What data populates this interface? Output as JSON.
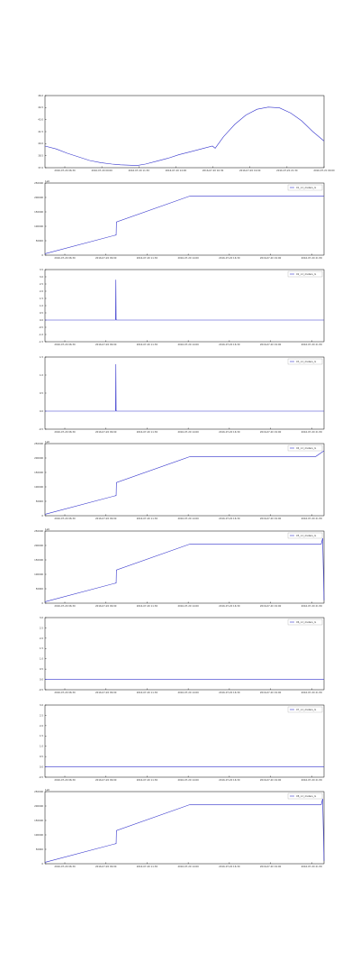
{
  "chart_data": [
    {
      "type": "line",
      "y_range": [
        37.0,
        47.0
      ],
      "y_ticks": [
        "37.0",
        "38.5",
        "40.0",
        "41.5",
        "43.0",
        "44.5",
        "46.0"
      ],
      "x_ticks": [
        "2016-07-20 06:30",
        "2016-07-20 09:00",
        "2016-07-20 11:30",
        "2016-07-20 14:00",
        "2016-07-20 16:30",
        "2016-07-20 19:00",
        "2016-07-20 21:30",
        "2016-07-21 00:00"
      ],
      "legend": null,
      "offset": null,
      "series": [
        {
          "color": "#3333cc",
          "x": [
            0,
            4,
            8,
            12,
            16,
            20,
            24,
            27,
            30,
            33,
            36,
            40,
            44,
            48,
            52,
            56,
            60,
            61,
            64,
            68,
            72,
            76,
            80,
            84,
            88,
            92,
            96,
            100
          ],
          "y": [
            40.0,
            39.6,
            39.0,
            38.5,
            38.0,
            37.7,
            37.5,
            37.4,
            37.35,
            37.3,
            37.5,
            37.9,
            38.3,
            38.8,
            39.2,
            39.6,
            40.0,
            39.7,
            41.3,
            43.0,
            44.3,
            45.1,
            45.4,
            45.3,
            44.6,
            43.5,
            42.0,
            40.7
          ]
        }
      ]
    },
    {
      "type": "line",
      "y_range": [
        0,
        250000
      ],
      "y_ticks": [
        "0",
        "50000",
        "100000",
        "150000",
        "200000",
        "250000"
      ],
      "x_ticks": [
        "2016-07-20 06:30",
        "2016-07-20 09:00",
        "2016-07-20 11:30",
        "2016-07-20 14:00",
        "2016-07-20 16:30",
        "2016-07-20 19:00",
        "2016-07-20 21:30"
      ],
      "legend": "X1_ccl_meters_IL",
      "offset": "1e6",
      "series": [
        {
          "color": "#3333cc",
          "x": [
            0,
            25.5,
            25.6,
            52,
            100
          ],
          "y": [
            5000,
            70000,
            115000,
            205000,
            205000
          ]
        }
      ]
    },
    {
      "type": "line",
      "y_range": [
        -1.5,
        3.5
      ],
      "y_ticks": [
        "-1.5",
        "-1.0",
        "-0.5",
        "0.0",
        "0.5",
        "1.0",
        "1.5",
        "2.0",
        "2.5",
        "3.0",
        "3.5"
      ],
      "x_ticks": [
        "2016-07-20 06:30",
        "2016-07-20 09:00",
        "2016-07-20 11:30",
        "2016-07-20 14:00",
        "2016-07-20 16:30",
        "2016-07-20 19:00",
        "2016-07-20 21:30"
      ],
      "legend": "X2_ccl_meters_IL",
      "offset": null,
      "series": [
        {
          "color": "#3333cc",
          "x": [
            0,
            25.3,
            25.4,
            25.5,
            25.6,
            100
          ],
          "y": [
            0,
            0,
            2.8,
            0.05,
            0,
            0
          ]
        }
      ]
    },
    {
      "type": "line",
      "y_range": [
        -0.5,
        1.5
      ],
      "y_ticks": [
        "-0.5",
        "0.0",
        "0.5",
        "1.0",
        "1.5"
      ],
      "x_ticks": [
        "2016-07-20 06:30",
        "2016-07-20 09:00",
        "2016-07-20 11:30",
        "2016-07-20 14:00",
        "2016-07-20 16:30",
        "2016-07-20 19:00",
        "2016-07-20 21:30"
      ],
      "legend": "X3_ccl_meters_IL",
      "offset": null,
      "series": [
        {
          "color": "#3333cc",
          "x": [
            0,
            25.3,
            25.4,
            25.5,
            25.6,
            100
          ],
          "y": [
            0,
            0,
            1.3,
            0.02,
            0,
            0
          ]
        }
      ]
    },
    {
      "type": "line",
      "y_range": [
        0,
        250000
      ],
      "y_ticks": [
        "0",
        "50000",
        "100000",
        "150000",
        "200000",
        "250000"
      ],
      "x_ticks": [
        "2016-07-20 06:30",
        "2016-07-20 09:00",
        "2016-07-20 11:30",
        "2016-07-20 14:00",
        "2016-07-20 16:30",
        "2016-07-20 19:00",
        "2016-07-20 21:30"
      ],
      "legend": "X4_ccl_meters_IL",
      "offset": "1e6",
      "series": [
        {
          "color": "#3333cc",
          "x": [
            0,
            25.5,
            25.6,
            52,
            97,
            100
          ],
          "y": [
            5000,
            70000,
            115000,
            205000,
            205000,
            225000
          ]
        }
      ]
    },
    {
      "type": "line",
      "y_range": [
        0,
        250000
      ],
      "y_ticks": [
        "0",
        "50000",
        "100000",
        "150000",
        "200000",
        "250000"
      ],
      "x_ticks": [
        "2016-07-20 06:30",
        "2016-07-20 09:00",
        "2016-07-20 11:30",
        "2016-07-20 14:00",
        "2016-07-20 16:30",
        "2016-07-20 19:00",
        "2016-07-20 21:30"
      ],
      "legend": "X5_ccl_meters_IL",
      "offset": "1e6",
      "series": [
        {
          "color": "#3333cc",
          "x": [
            0,
            25.5,
            25.6,
            52,
            99,
            99.5,
            100
          ],
          "y": [
            5000,
            70000,
            115000,
            205000,
            205000,
            225000,
            10000
          ]
        }
      ]
    },
    {
      "type": "line",
      "y_range": [
        -0.5,
        3.0
      ],
      "y_ticks": [
        "-0.5",
        "0.0",
        "0.5",
        "1.0",
        "1.5",
        "2.0",
        "2.5",
        "3.0"
      ],
      "x_ticks": [
        "2016-07-20 06:30",
        "2016-07-20 09:00",
        "2016-07-20 11:30",
        "2016-07-20 14:00",
        "2016-07-20 16:30",
        "2016-07-20 19:00",
        "2016-07-20 21:30"
      ],
      "legend": "X6_ccl_meters_IL",
      "offset": null,
      "series": [
        {
          "color": "#3333cc",
          "x": [
            0,
            100
          ],
          "y": [
            0,
            0
          ]
        }
      ]
    },
    {
      "type": "line",
      "y_range": [
        -0.5,
        3.0
      ],
      "y_ticks": [
        "-0.5",
        "0.0",
        "0.5",
        "1.0",
        "1.5",
        "2.0",
        "2.5",
        "3.0"
      ],
      "x_ticks": [
        "2016-07-20 06:30",
        "2016-07-20 09:00",
        "2016-07-20 11:30",
        "2016-07-20 14:00",
        "2016-07-20 16:30",
        "2016-07-20 19:00",
        "2016-07-20 21:30"
      ],
      "legend": "X7_ccl_meters_IL",
      "offset": null,
      "series": [
        {
          "color": "#3333cc",
          "x": [
            0,
            100
          ],
          "y": [
            0,
            0
          ]
        }
      ]
    },
    {
      "type": "line",
      "y_range": [
        0,
        250000
      ],
      "y_ticks": [
        "0",
        "50000",
        "100000",
        "150000",
        "200000",
        "250000"
      ],
      "x_ticks": [
        "2016-07-20 06:30",
        "2016-07-20 09:00",
        "2016-07-20 11:30",
        "2016-07-20 14:00",
        "2016-07-20 16:30",
        "2016-07-20 19:00",
        "2016-07-20 21:30"
      ],
      "legend": "X8_ccl_meters_IL",
      "offset": "1e6",
      "series": [
        {
          "color": "#3333cc",
          "x": [
            0,
            25.5,
            25.6,
            52,
            99,
            99.5,
            100
          ],
          "y": [
            5000,
            70000,
            115000,
            205000,
            205000,
            225000,
            10000
          ]
        }
      ]
    }
  ]
}
